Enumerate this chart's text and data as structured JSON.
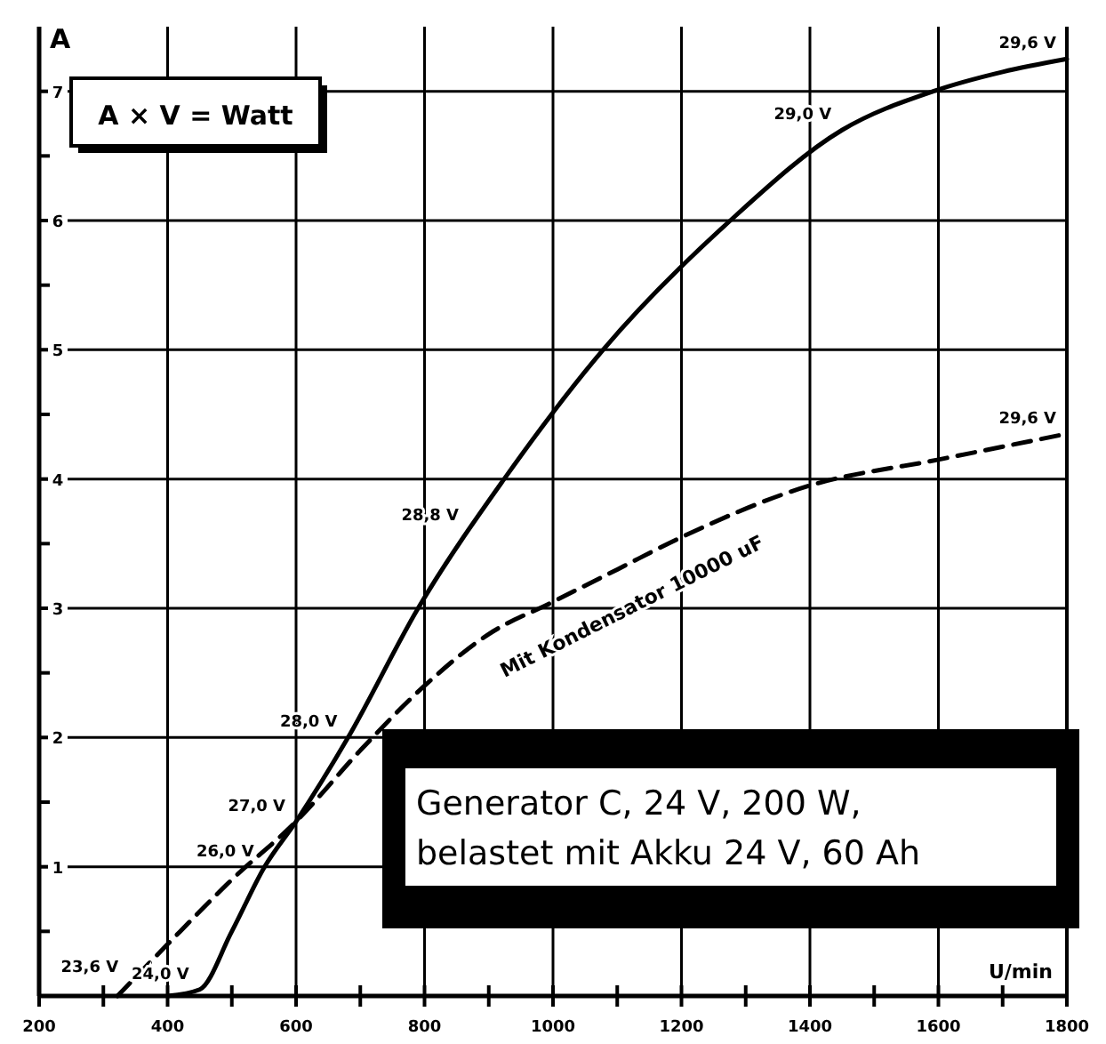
{
  "chart_data": {
    "type": "line",
    "xlabel": "U/min",
    "ylabel": "A",
    "xlim": [
      200,
      1800
    ],
    "ylim": [
      0,
      7.5
    ],
    "xticks": [
      200,
      {
        "value": 300,
        "label": null
      },
      400,
      {
        "value": 500,
        "label": null
      },
      600,
      {
        "value": 700,
        "label": null
      },
      800,
      {
        "value": 900,
        "label": null
      },
      1000,
      {
        "value": 1100,
        "label": null
      },
      1200,
      {
        "value": 1300,
        "label": null
      },
      1400,
      {
        "value": 1500,
        "label": null
      },
      1600,
      {
        "value": 1700,
        "label": null
      },
      1800
    ],
    "yticks": [
      {
        "value": 0.5,
        "label": null
      },
      1,
      {
        "value": 1.5,
        "label": null
      },
      2,
      {
        "value": 2.5,
        "label": null
      },
      3,
      {
        "value": 3.5,
        "label": null
      },
      4,
      {
        "value": 4.5,
        "label": null
      },
      5,
      {
        "value": 5.5,
        "label": null
      },
      6,
      {
        "value": 6.5,
        "label": null
      },
      7
    ],
    "grid": true,
    "marker": "none",
    "series": [
      {
        "color": "#000000",
        "line_style": "solid",
        "x": [
          400,
          450,
          500,
          551,
          600,
          681,
          790,
          924,
          1078,
          1276,
          1450,
          1592,
          1700,
          1800
        ],
        "values": [
          0,
          0.05,
          0.5,
          1,
          1.35,
          2,
          3,
          4,
          5,
          6,
          6.7,
          7,
          7.15,
          7.25
        ]
      },
      {
        "name": "Mit Kondensator 10000 uF",
        "color": "#000000",
        "line_style": "dashed",
        "x": [
          322,
          400,
          500,
          600,
          700,
          800,
          900,
          1000,
          1100,
          1200,
          1400,
          1600,
          1800
        ],
        "values": [
          0,
          0.4,
          0.9,
          1.35,
          1.9,
          2.4,
          2.8,
          3.05,
          3.3,
          3.55,
          3.95,
          4.15,
          4.35
        ]
      }
    ],
    "annotations": [
      {
        "text": "23,6 V",
        "x": 340,
        "y": 0.1
      },
      {
        "text": "24,0 V",
        "x": 450,
        "y": 0.05
      },
      {
        "text": "26,0 V",
        "x": 551,
        "y": 1
      },
      {
        "text": "27,0 V",
        "x": 600,
        "y": 1.35
      },
      {
        "text": "28,0 V",
        "x": 681,
        "y": 2
      },
      {
        "text": "28,8 V",
        "x": 870,
        "y": 3.6
      },
      {
        "text": "29,0 V",
        "x": 1450,
        "y": 6.7
      },
      {
        "text": "29,6 V",
        "x": 1800,
        "y": 7.25
      },
      {
        "text": "29,6 V",
        "x": 1800,
        "y": 4.35
      },
      "A × V = Watt",
      "Generator C, 24 V, 200 W,\nbelastet mit Akku 24 V, 60 Ah"
    ]
  }
}
